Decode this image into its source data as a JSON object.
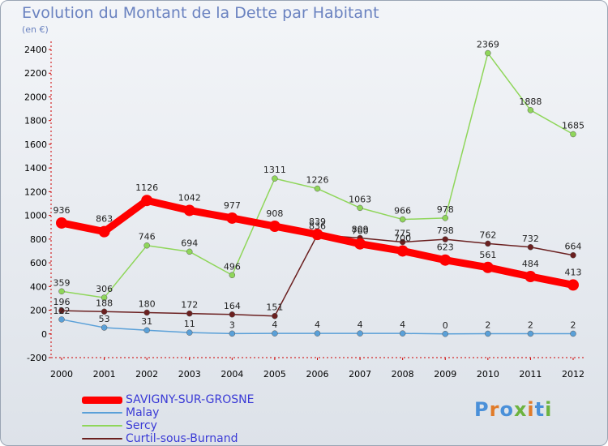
{
  "header": {
    "title": "Evolution du Montant de la Dette par Habitant",
    "unit": "(en €)"
  },
  "logo": {
    "text": "Proxiti",
    "colors": [
      "#4a90d9",
      "#e07b2a",
      "#4a90d9",
      "#6cb33f",
      "#e07b2a",
      "#4a90d9",
      "#6cb33f"
    ]
  },
  "chart_data": {
    "type": "line",
    "title": "Evolution du Montant de la Dette par Habitant",
    "ylabel": "(en €)",
    "x": [
      "2000",
      "2001",
      "2002",
      "2003",
      "2004",
      "2005",
      "2006",
      "2007",
      "2008",
      "2009",
      "2010",
      "2011",
      "2012"
    ],
    "ylim": [
      -200,
      2400
    ],
    "yticks": [
      -200,
      0,
      200,
      400,
      600,
      800,
      1000,
      1200,
      1400,
      1600,
      1800,
      2000,
      2200,
      2400
    ],
    "grid": false,
    "legend_position": "bottom-left",
    "series": [
      {
        "name": "SAVIGNY-SUR-GROSNE",
        "color": "#ff0000",
        "values": [
          936,
          863,
          1126,
          1042,
          977,
          908,
          839,
          760,
          700,
          623,
          561,
          484,
          413
        ]
      },
      {
        "name": "Malay",
        "color": "#5aa0d8",
        "values": [
          122,
          53,
          31,
          11,
          3,
          4,
          4,
          4,
          4,
          0,
          2,
          2,
          2
        ]
      },
      {
        "name": "Sercy",
        "color": "#8fd65a",
        "values": [
          359,
          306,
          746,
          694,
          496,
          1311,
          1226,
          1063,
          966,
          978,
          2369,
          1888,
          1685
        ]
      },
      {
        "name": "Curtil-sous-Burnand",
        "color": "#6b2020",
        "values": [
          196,
          188,
          180,
          172,
          164,
          151,
          836,
          809,
          775,
          798,
          762,
          732,
          664
        ]
      }
    ]
  }
}
